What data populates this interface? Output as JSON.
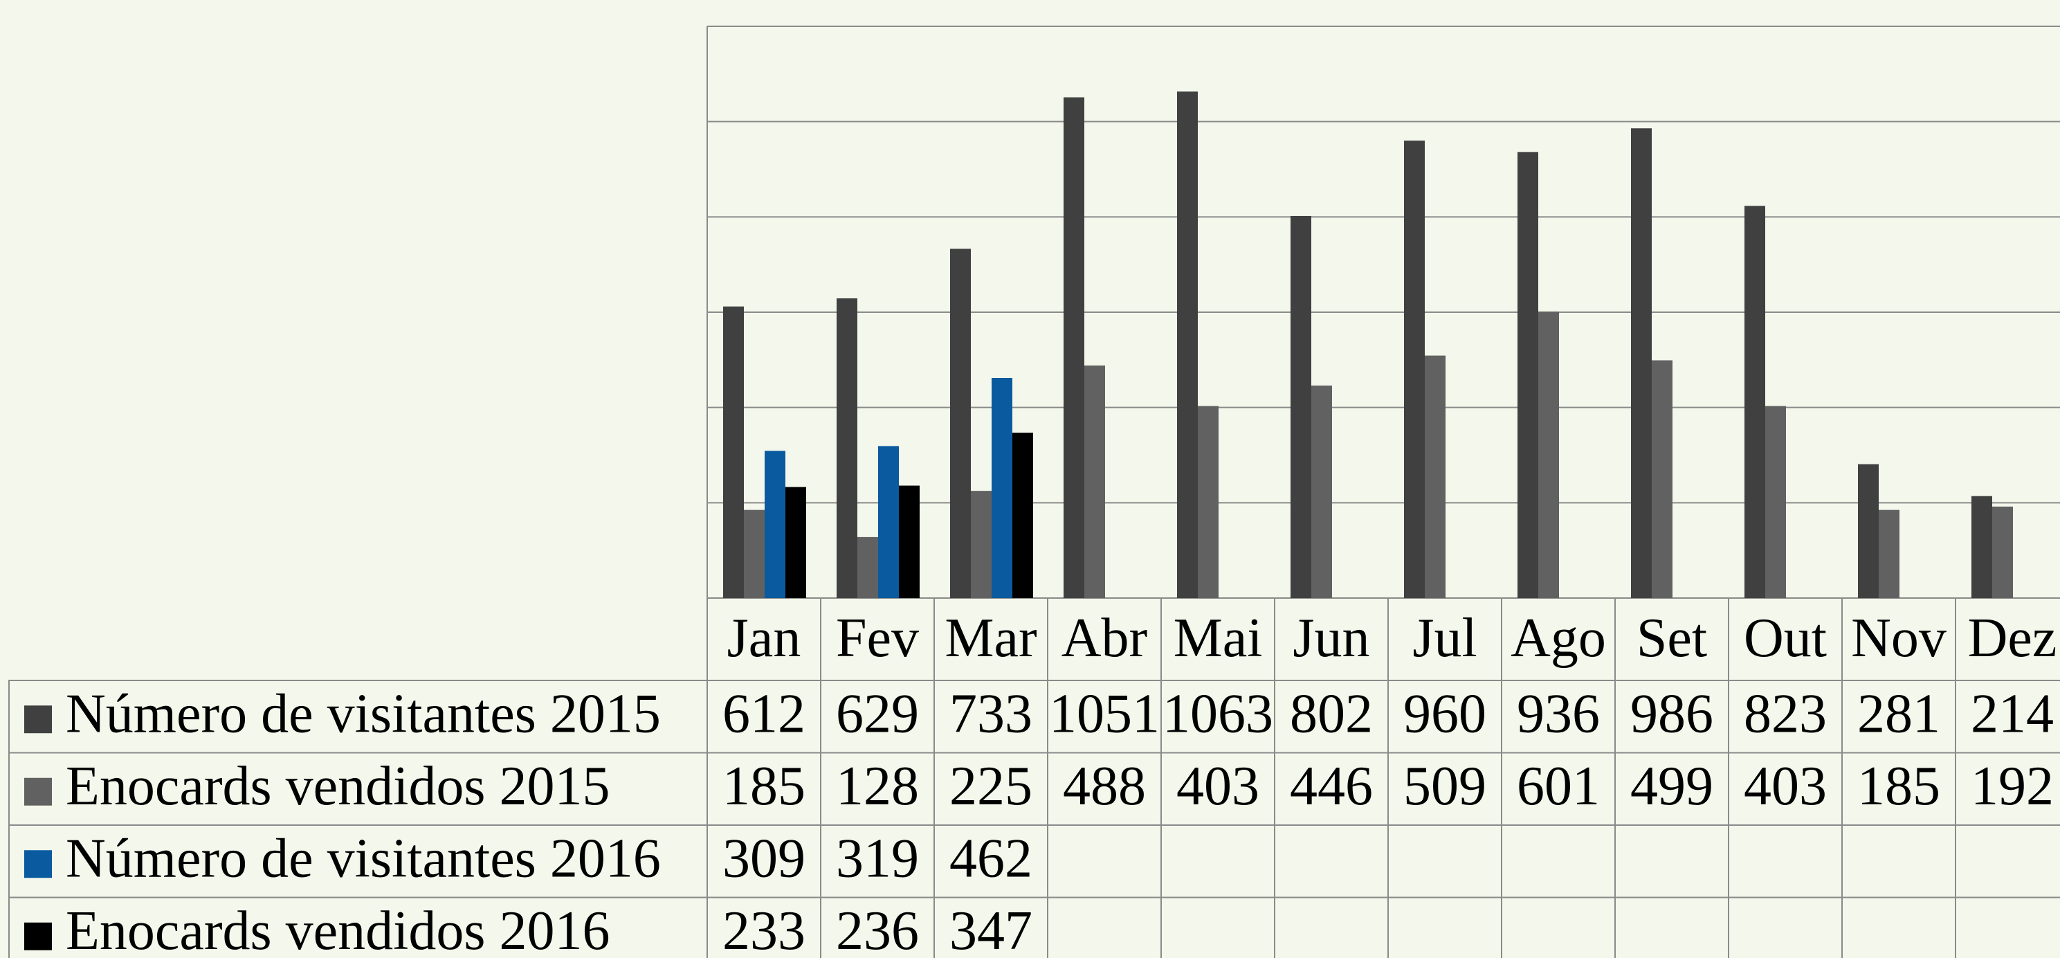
{
  "chart_data": {
    "type": "bar",
    "categories": [
      "Jan",
      "Fev",
      "Mar",
      "Abr",
      "Mai",
      "Jun",
      "Jul",
      "Ago",
      "Set",
      "Out",
      "Nov",
      "Dez"
    ],
    "series": [
      {
        "name": "Número de visitantes 2015",
        "color": "#404040",
        "values": [
          612,
          629,
          733,
          1051,
          1063,
          802,
          960,
          936,
          986,
          823,
          281,
          214
        ]
      },
      {
        "name": "Enocards vendidos 2015",
        "color": "#616161",
        "values": [
          185,
          128,
          225,
          488,
          403,
          446,
          509,
          601,
          499,
          403,
          185,
          192
        ]
      },
      {
        "name": "Número de visitantes 2016",
        "color": "#0a5aa0",
        "values": [
          309,
          319,
          462,
          null,
          null,
          null,
          null,
          null,
          null,
          null,
          null,
          null
        ]
      },
      {
        "name": "Enocards vendidos 2016",
        "color": "#000000",
        "values": [
          233,
          236,
          347,
          null,
          null,
          null,
          null,
          null,
          null,
          null,
          null,
          null
        ]
      }
    ],
    "ylim": [
      0,
      1200
    ],
    "yticks": [
      0,
      200,
      400,
      600,
      800,
      1000,
      1200
    ],
    "grid": true,
    "data_table": true
  }
}
